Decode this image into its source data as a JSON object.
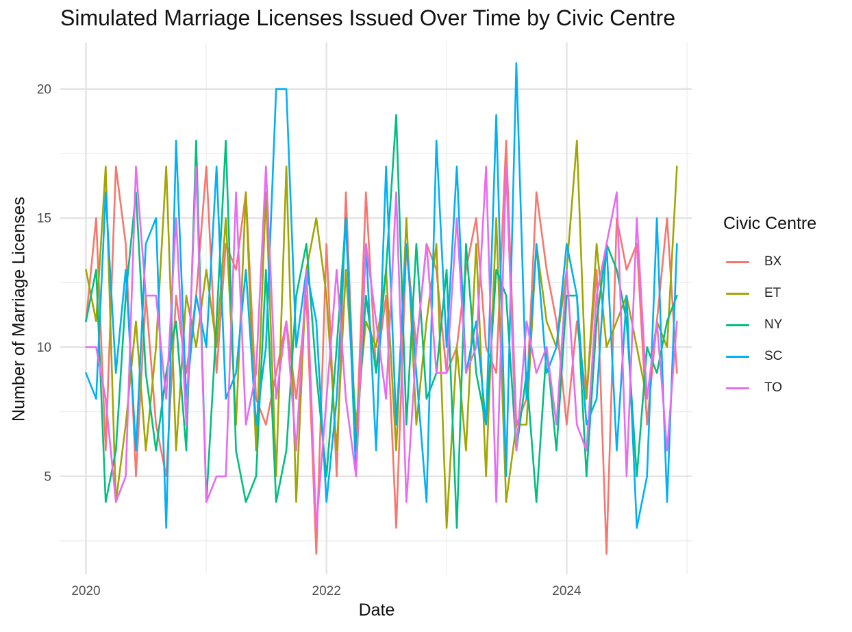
{
  "chart_data": {
    "type": "line",
    "title": "Simulated Marriage Licenses Issued Over Time by Civic Centre",
    "xlabel": "Date",
    "ylabel": "Number of Marriage Licenses",
    "legend_title": "Civic Centre",
    "legend_position": "right",
    "grid": true,
    "x_range": [
      "2019-10-15",
      "2025-01-15"
    ],
    "ylim": [
      1.2,
      21.8
    ],
    "x_ticks": [
      {
        "label": "2020",
        "date": "2020-01-01"
      },
      {
        "label": "2022",
        "date": "2022-01-01"
      },
      {
        "label": "2024",
        "date": "2024-01-01"
      }
    ],
    "y_ticks": [
      5,
      10,
      15,
      20
    ],
    "dates": [
      "2020-01",
      "2020-02",
      "2020-03",
      "2020-04",
      "2020-05",
      "2020-06",
      "2020-07",
      "2020-08",
      "2020-09",
      "2020-10",
      "2020-11",
      "2020-12",
      "2021-01",
      "2021-02",
      "2021-03",
      "2021-04",
      "2021-05",
      "2021-06",
      "2021-07",
      "2021-08",
      "2021-09",
      "2021-10",
      "2021-11",
      "2021-12",
      "2022-01",
      "2022-02",
      "2022-03",
      "2022-04",
      "2022-05",
      "2022-06",
      "2022-07",
      "2022-08",
      "2022-09",
      "2022-10",
      "2022-11",
      "2022-12",
      "2023-01",
      "2023-02",
      "2023-03",
      "2023-04",
      "2023-05",
      "2023-06",
      "2023-07",
      "2023-08",
      "2023-09",
      "2023-10",
      "2023-11",
      "2023-12",
      "2024-01",
      "2024-02",
      "2024-03",
      "2024-04",
      "2024-05",
      "2024-06",
      "2024-07",
      "2024-08",
      "2024-09",
      "2024-10",
      "2024-11",
      "2024-12"
    ],
    "series": [
      {
        "name": "BX",
        "color": "#F8766D",
        "values": [
          11,
          15,
          6,
          17,
          14,
          5,
          12,
          7,
          5,
          12,
          9,
          12,
          17,
          9,
          14,
          13,
          16,
          8,
          7,
          9,
          11,
          8,
          12,
          2,
          14,
          5,
          16,
          6,
          16,
          9,
          12,
          3,
          14,
          10,
          14,
          13,
          9,
          10,
          13,
          15,
          10,
          9,
          18,
          7,
          8,
          16,
          13,
          11,
          7,
          11,
          8,
          13,
          2,
          15,
          13,
          14,
          7,
          11,
          15,
          9
        ]
      },
      {
        "name": "ET",
        "color": "#A3A500",
        "values": [
          13,
          11,
          17,
          4,
          7,
          11,
          6,
          10,
          17,
          6,
          12,
          10,
          13,
          10,
          15,
          7,
          16,
          6,
          16,
          5,
          17,
          4,
          13,
          15,
          12,
          6,
          13,
          7,
          11,
          10,
          13,
          6,
          15,
          7,
          11,
          14,
          3,
          10,
          6,
          14,
          5,
          15,
          4,
          7,
          7,
          14,
          11,
          10,
          13,
          18,
          8,
          14,
          10,
          11,
          12,
          10,
          8,
          11,
          10,
          17
        ]
      },
      {
        "name": "NY",
        "color": "#00BF7D",
        "values": [
          11,
          13,
          4,
          6,
          12,
          16,
          9,
          6,
          9,
          11,
          6,
          18,
          4,
          11,
          18,
          6,
          4,
          5,
          13,
          4,
          6,
          12,
          14,
          9,
          5,
          10,
          15,
          6,
          12,
          9,
          13,
          19,
          7,
          14,
          8,
          9,
          13,
          3,
          14,
          9,
          7,
          13,
          12,
          6,
          9,
          4,
          10,
          6,
          12,
          12,
          5,
          11,
          14,
          13,
          11,
          5,
          10,
          9,
          11,
          12
        ]
      },
      {
        "name": "SC",
        "color": "#00B0F6",
        "values": [
          9,
          8,
          16,
          9,
          13,
          6,
          14,
          15,
          3,
          18,
          8,
          12,
          10,
          17,
          8,
          9,
          13,
          7,
          10,
          20,
          20,
          10,
          13,
          11,
          4,
          8,
          15,
          5,
          14,
          6,
          17,
          7,
          14,
          9,
          4,
          18,
          10,
          17,
          9,
          11,
          7,
          19,
          5,
          21,
          8,
          14,
          9,
          10,
          14,
          12,
          7,
          8,
          14,
          6,
          12,
          3,
          5,
          15,
          4,
          14
        ]
      },
      {
        "name": "TO",
        "color": "#E76BF3",
        "values": [
          10,
          10,
          8,
          4,
          5,
          17,
          12,
          12,
          8,
          15,
          7,
          17,
          4,
          5,
          5,
          16,
          7,
          9,
          17,
          8,
          11,
          6,
          13,
          3,
          8,
          13,
          8,
          5,
          14,
          11,
          8,
          16,
          4,
          10,
          14,
          9,
          9,
          15,
          9,
          10,
          17,
          4,
          17,
          6,
          11,
          9,
          10,
          7,
          13,
          7,
          6,
          12,
          14,
          16,
          5,
          15,
          8,
          11,
          6,
          11
        ]
      }
    ]
  }
}
